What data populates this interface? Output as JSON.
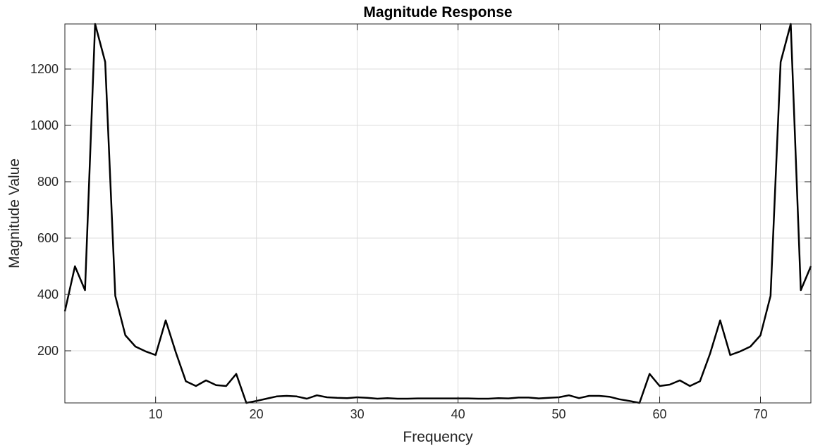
{
  "chart_data": {
    "type": "line",
    "title": "Magnitude Response",
    "xlabel": "Frequency",
    "ylabel": "Magnitude Value",
    "xlim": [
      1,
      75
    ],
    "ylim": [
      15,
      1360
    ],
    "xticks": [
      10,
      20,
      30,
      40,
      50,
      60,
      70
    ],
    "yticks": [
      200,
      400,
      600,
      800,
      1000,
      1200
    ],
    "grid": true,
    "colors": {
      "line": "#000000",
      "grid": "#dcdcdc",
      "axis": "#262626"
    },
    "series": [
      {
        "x": [
          1,
          2,
          3,
          4,
          5,
          6,
          7,
          8,
          9,
          10,
          11,
          12,
          13,
          14,
          15,
          16,
          17,
          18,
          19,
          20,
          21,
          22,
          23,
          24,
          25,
          26,
          27,
          28,
          29,
          30,
          31,
          32,
          33,
          34,
          35,
          36,
          37,
          38,
          39,
          40,
          41,
          42,
          43,
          44,
          45,
          46,
          47,
          48,
          49,
          50,
          51,
          52,
          53,
          54,
          55,
          56,
          57,
          58,
          59,
          60,
          61,
          62,
          63,
          64,
          65,
          66,
          67,
          68,
          69,
          70,
          71,
          72,
          73,
          74,
          75
        ],
        "values": [
          340,
          500,
          415,
          1360,
          1225,
          395,
          255,
          215,
          198,
          185,
          308,
          195,
          92,
          75,
          95,
          78,
          75,
          118,
          15,
          22,
          30,
          38,
          40,
          38,
          30,
          42,
          35,
          33,
          32,
          35,
          33,
          30,
          32,
          30,
          30,
          31,
          31,
          31,
          31,
          31,
          31,
          30,
          30,
          32,
          31,
          34,
          34,
          31,
          33,
          35,
          42,
          32,
          40,
          40,
          37,
          28,
          22,
          15,
          118,
          75,
          80,
          95,
          75,
          92,
          190,
          308,
          185,
          198,
          215,
          255,
          395,
          1225,
          1360,
          415,
          500
        ]
      }
    ]
  }
}
